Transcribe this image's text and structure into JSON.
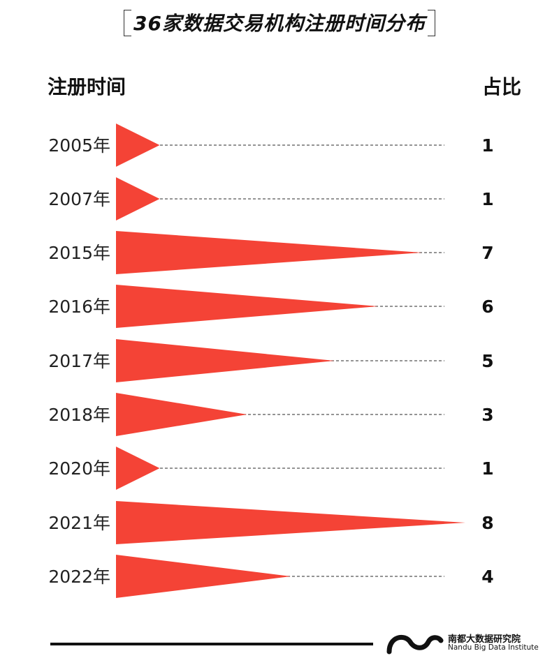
{
  "header": {
    "title": "36家数据交易机构注册时间分布",
    "col_left": "注册时间",
    "col_right": "占比"
  },
  "chart_data": {
    "type": "bar",
    "categories": [
      "2005年",
      "2007年",
      "2015年",
      "2016年",
      "2017年",
      "2018年",
      "2020年",
      "2021年",
      "2022年"
    ],
    "values": [
      1,
      1,
      7,
      6,
      5,
      3,
      1,
      8,
      4
    ],
    "bar_color": "#f44336",
    "leader_line": "dashed"
  },
  "brand": {
    "name_zh": "南都大数据研究院",
    "name_en": "Nandu Big Data Institute"
  }
}
